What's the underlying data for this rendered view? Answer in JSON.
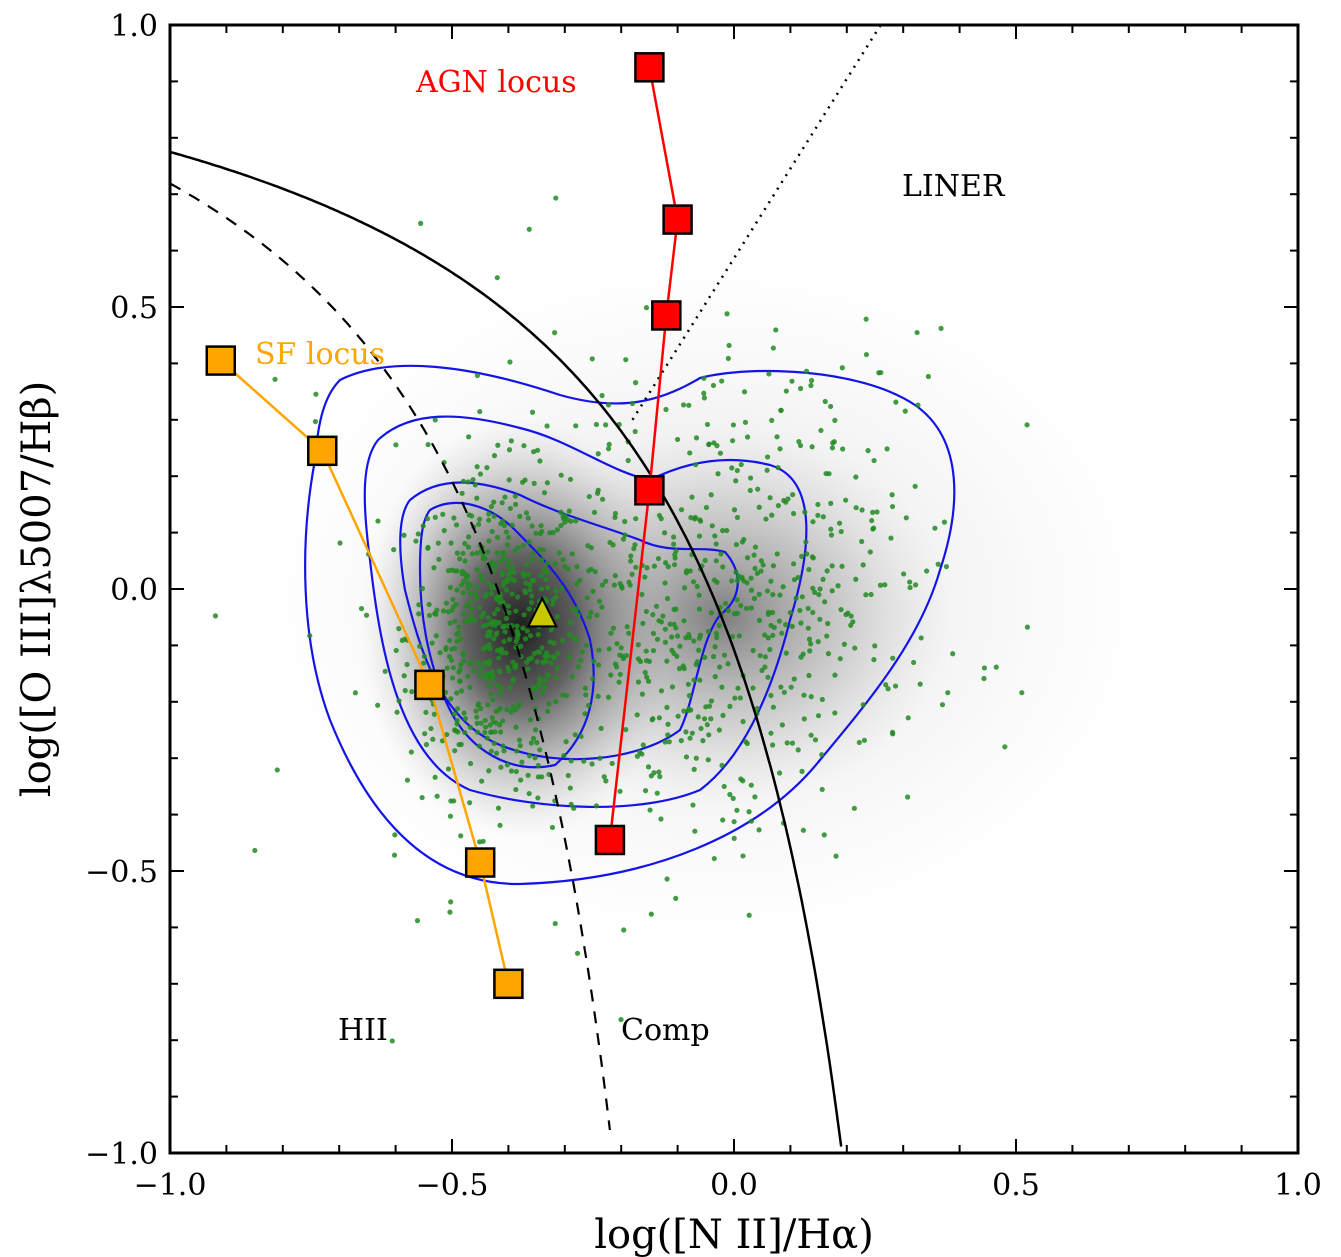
{
  "chart_data": {
    "type": "scatter",
    "xlabel": "log([N II]/Hα)",
    "ylabel": "log([O III]λ5007/Hβ)",
    "xlim": [
      -1.0,
      1.0
    ],
    "ylim": [
      -1.0,
      1.0
    ],
    "xticks": [
      "−1.0",
      "−0.5",
      "0.0",
      "0.5",
      "1.0"
    ],
    "yticks": [
      "−1.0",
      "−0.5",
      "0.0",
      "0.5",
      "1.0"
    ],
    "grid": false,
    "region_labels": {
      "hii": "HII",
      "comp": "Comp",
      "liner": "LINER"
    },
    "sf_locus": {
      "name": "SF locus",
      "color": "#ffa500",
      "x": [
        -0.91,
        -0.73,
        -0.54,
        -0.45,
        -0.4
      ],
      "y": [
        0.405,
        0.245,
        -0.17,
        -0.485,
        -0.7
      ]
    },
    "agn_locus": {
      "name": "AGN locus",
      "color": "#ff0000",
      "x": [
        -0.15,
        -0.1,
        -0.12,
        -0.15,
        -0.22
      ],
      "y": [
        0.925,
        0.655,
        0.485,
        0.175,
        -0.445
      ]
    },
    "mean_point": {
      "x": -0.34,
      "y": -0.045,
      "color": "#c8c800"
    },
    "kauffmann_curve": "y = 0.61/(x-0.05) + 1.3",
    "kewley_curve": "y = 0.61/(x-0.47) + 1.19",
    "liner_line": "y = 1.01x + 0.48",
    "contour_color": "#1414e6",
    "point_color": "#228b22"
  }
}
